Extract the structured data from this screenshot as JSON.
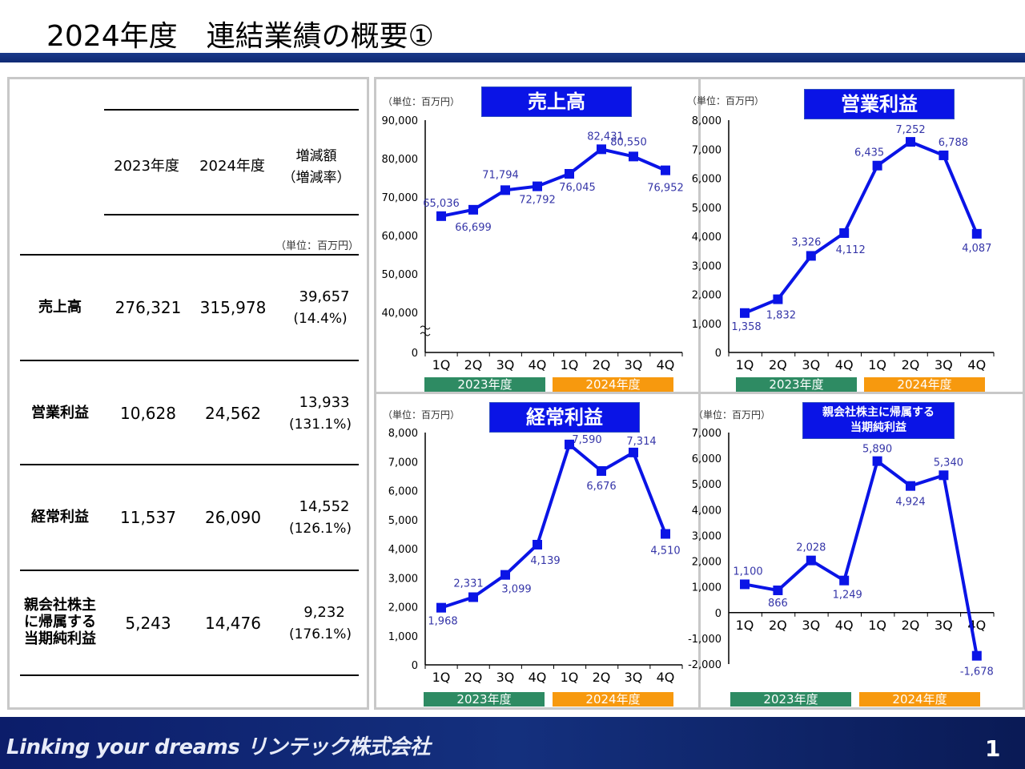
{
  "header": {
    "title": "2024年度　連結業績の概要①"
  },
  "table": {
    "col_2023": "2023年度",
    "col_2024": "2024年度",
    "col_diff": "増減額",
    "col_rate": "（増減率）",
    "unit": "（単位：百万円）",
    "rows": [
      {
        "label": "売上高",
        "v2023": "276,321",
        "v2024": "315,978",
        "diff": "39,657",
        "rate": "(14.4%)"
      },
      {
        "label": "営業利益",
        "v2023": "10,628",
        "v2024": "24,562",
        "diff": "13,933",
        "rate": "(131.1%)"
      },
      {
        "label": "経常利益",
        "v2023": "11,537",
        "v2024": "26,090",
        "diff": "14,552",
        "rate": "(126.1%)"
      },
      {
        "label": "親会社株主\nに帰属する\n当期純利益",
        "v2023": "5,243",
        "v2024": "14,476",
        "diff": "9,232",
        "rate": "(176.1%)"
      }
    ]
  },
  "chart_data": [
    {
      "type": "line",
      "title": "売上高",
      "unit": "（単位：百万円）",
      "categories": [
        "1Q",
        "2Q",
        "3Q",
        "4Q",
        "1Q",
        "2Q",
        "3Q",
        "4Q"
      ],
      "periods": [
        "2023年度",
        "2024年度"
      ],
      "values": [
        65036,
        66699,
        71794,
        72792,
        76045,
        82431,
        80550,
        76952
      ],
      "data_labels": [
        "65,036",
        "66,699",
        "71,794",
        "72,792",
        "76,045",
        "82,431",
        "80,550",
        "76,952"
      ],
      "y_ticks": [
        0,
        40000,
        50000,
        60000,
        70000,
        80000,
        90000
      ],
      "y_tick_labels": [
        "0",
        "40,000",
        "50,000",
        "60,000",
        "70,000",
        "80,000",
        "90,000"
      ],
      "ylim": [
        0,
        90000
      ],
      "axis_break": [
        0,
        40000
      ],
      "color": "#0a14e6"
    },
    {
      "type": "line",
      "title": "営業利益",
      "unit": "（単位：百万円）",
      "categories": [
        "1Q",
        "2Q",
        "3Q",
        "4Q",
        "1Q",
        "2Q",
        "3Q",
        "4Q"
      ],
      "periods": [
        "2023年度",
        "2024年度"
      ],
      "values": [
        1358,
        1832,
        3326,
        4112,
        6435,
        7252,
        6788,
        4087
      ],
      "data_labels": [
        "1,358",
        "1,832",
        "3,326",
        "4,112",
        "6,435",
        "7,252",
        "6,788",
        "4,087"
      ],
      "y_ticks": [
        0,
        1000,
        2000,
        3000,
        4000,
        5000,
        6000,
        7000,
        8000
      ],
      "y_tick_labels": [
        "0",
        "1,000",
        "2,000",
        "3,000",
        "4,000",
        "5,000",
        "6,000",
        "7,000",
        "8,000"
      ],
      "ylim": [
        0,
        8000
      ],
      "color": "#0a14e6"
    },
    {
      "type": "line",
      "title": "経常利益",
      "unit": "（単位：百万円）",
      "categories": [
        "1Q",
        "2Q",
        "3Q",
        "4Q",
        "1Q",
        "2Q",
        "3Q",
        "4Q"
      ],
      "periods": [
        "2023年度",
        "2024年度"
      ],
      "values": [
        1968,
        2331,
        3099,
        4139,
        7590,
        6676,
        7314,
        4510
      ],
      "data_labels": [
        "1,968",
        "2,331",
        "3,099",
        "4,139",
        "7,590",
        "6,676",
        "7,314",
        "4,510"
      ],
      "y_ticks": [
        0,
        1000,
        2000,
        3000,
        4000,
        5000,
        6000,
        7000,
        8000
      ],
      "y_tick_labels": [
        "0",
        "1,000",
        "2,000",
        "3,000",
        "4,000",
        "5,000",
        "6,000",
        "7,000",
        "8,000"
      ],
      "ylim": [
        0,
        8000
      ],
      "color": "#0a14e6"
    },
    {
      "type": "line",
      "title": "親会社株主に帰属する\n当期純利益",
      "unit": "（単位：百万円）",
      "categories": [
        "1Q",
        "2Q",
        "3Q",
        "4Q",
        "1Q",
        "2Q",
        "3Q",
        "4Q"
      ],
      "periods": [
        "2023年度",
        "2024年度"
      ],
      "values": [
        1100,
        866,
        2028,
        1249,
        5890,
        4924,
        5340,
        -1678
      ],
      "data_labels": [
        "1,100",
        "866",
        "2,028",
        "1,249",
        "5,890",
        "4,924",
        "5,340",
        "-1,678"
      ],
      "y_ticks": [
        -2000,
        -1000,
        0,
        1000,
        2000,
        3000,
        4000,
        5000,
        6000,
        7000
      ],
      "y_tick_labels": [
        "-2,000",
        "-1,000",
        "0",
        "1,000",
        "2,000",
        "3,000",
        "4,000",
        "5,000",
        "6,000",
        "7,000"
      ],
      "ylim": [
        -2000,
        7000
      ],
      "color": "#0a14e6"
    }
  ],
  "footer": {
    "slogan": "Linking your dreams リンテック株式会社",
    "page_number": "1"
  }
}
